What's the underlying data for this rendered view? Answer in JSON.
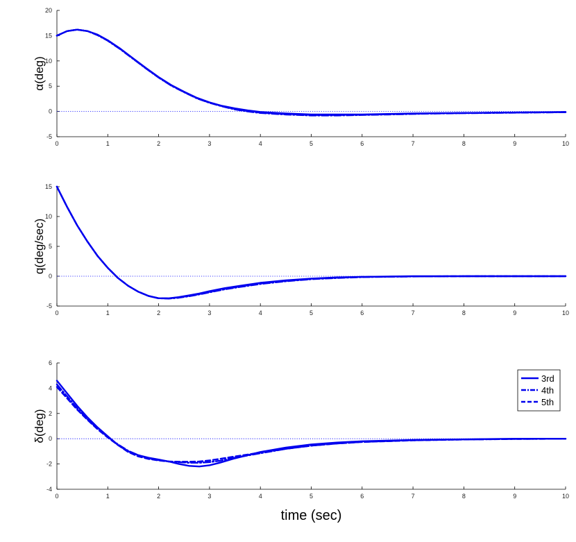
{
  "chart_data": [
    {
      "type": "line",
      "ylabel": "α(deg)",
      "xlim": [
        0,
        10
      ],
      "ylim": [
        -5,
        20
      ],
      "xticks": [
        "0",
        "1",
        "2",
        "3",
        "4",
        "5",
        "6",
        "7",
        "8",
        "9",
        "10"
      ],
      "yticks": [
        "-5",
        "0",
        "5",
        "10",
        "15",
        "20"
      ],
      "zero_line": true,
      "series": [
        {
          "name": "3rd",
          "style": "solid",
          "x": [
            0,
            0.2,
            0.4,
            0.6,
            0.8,
            1,
            1.25,
            1.5,
            1.75,
            2,
            2.25,
            2.5,
            2.75,
            3,
            3.25,
            3.5,
            3.75,
            4,
            4.5,
            5,
            5.5,
            6,
            6.5,
            7,
            7.5,
            8,
            8.5,
            9,
            9.5,
            10
          ],
          "y": [
            15,
            15.9,
            16.2,
            15.9,
            15.2,
            14.1,
            12.4,
            10.5,
            8.6,
            6.8,
            5.2,
            3.9,
            2.7,
            1.8,
            1.1,
            0.6,
            0.2,
            -0.1,
            -0.4,
            -0.6,
            -0.6,
            -0.6,
            -0.5,
            -0.4,
            -0.35,
            -0.3,
            -0.25,
            -0.2,
            -0.15,
            -0.1
          ]
        },
        {
          "name": "4th",
          "style": "dashdot",
          "x": [
            0,
            0.2,
            0.4,
            0.6,
            0.8,
            1,
            1.25,
            1.5,
            1.75,
            2,
            2.25,
            2.5,
            2.75,
            3,
            3.25,
            3.5,
            3.75,
            4,
            4.5,
            5,
            5.5,
            6,
            6.5,
            7,
            7.5,
            8,
            8.5,
            9,
            9.5,
            10
          ],
          "y": [
            15,
            15.9,
            16.2,
            15.9,
            15.1,
            14.0,
            12.3,
            10.4,
            8.5,
            6.7,
            5.1,
            3.8,
            2.6,
            1.7,
            1.0,
            0.4,
            0.0,
            -0.3,
            -0.6,
            -0.8,
            -0.8,
            -0.7,
            -0.6,
            -0.5,
            -0.4,
            -0.35,
            -0.3,
            -0.25,
            -0.2,
            -0.15
          ]
        },
        {
          "name": "5th",
          "style": "dashed",
          "x": [
            0,
            0.2,
            0.4,
            0.6,
            0.8,
            1,
            1.25,
            1.5,
            1.75,
            2,
            2.25,
            2.5,
            2.75,
            3,
            3.25,
            3.5,
            3.75,
            4,
            4.5,
            5,
            5.5,
            6,
            6.5,
            7,
            7.5,
            8,
            8.5,
            9,
            9.5,
            10
          ],
          "y": [
            15,
            15.9,
            16.2,
            15.9,
            15.15,
            14.05,
            12.35,
            10.45,
            8.55,
            6.75,
            5.15,
            3.85,
            2.65,
            1.75,
            1.05,
            0.5,
            0.1,
            -0.2,
            -0.5,
            -0.7,
            -0.7,
            -0.65,
            -0.55,
            -0.45,
            -0.38,
            -0.32,
            -0.27,
            -0.22,
            -0.17,
            -0.12
          ]
        }
      ]
    },
    {
      "type": "line",
      "ylabel": "q(deg/sec)",
      "xlim": [
        0,
        10
      ],
      "ylim": [
        -5,
        15
      ],
      "xticks": [
        "0",
        "1",
        "2",
        "3",
        "4",
        "5",
        "6",
        "7",
        "8",
        "9",
        "10"
      ],
      "yticks": [
        "-5",
        "0",
        "5",
        "10",
        "15"
      ],
      "zero_line": true,
      "series": [
        {
          "name": "3rd",
          "style": "solid",
          "x": [
            0,
            0.2,
            0.4,
            0.6,
            0.8,
            1,
            1.2,
            1.4,
            1.6,
            1.8,
            2,
            2.2,
            2.4,
            2.6,
            2.8,
            3,
            3.3,
            3.6,
            4,
            4.5,
            5,
            5.5,
            6,
            7,
            8,
            9,
            10
          ],
          "y": [
            15,
            11.6,
            8.5,
            5.8,
            3.4,
            1.4,
            -0.3,
            -1.6,
            -2.6,
            -3.3,
            -3.7,
            -3.7,
            -3.5,
            -3.2,
            -2.9,
            -2.5,
            -2.0,
            -1.6,
            -1.1,
            -0.7,
            -0.4,
            -0.2,
            -0.1,
            0,
            0,
            0,
            0
          ]
        },
        {
          "name": "4th",
          "style": "dashdot",
          "x": [
            0,
            0.2,
            0.4,
            0.6,
            0.8,
            1,
            1.2,
            1.4,
            1.6,
            1.8,
            2,
            2.2,
            2.4,
            2.6,
            2.8,
            3,
            3.3,
            3.6,
            4,
            4.5,
            5,
            5.5,
            6,
            7,
            8,
            9,
            10
          ],
          "y": [
            15,
            11.6,
            8.5,
            5.8,
            3.4,
            1.4,
            -0.3,
            -1.6,
            -2.6,
            -3.3,
            -3.7,
            -3.75,
            -3.6,
            -3.35,
            -3.05,
            -2.7,
            -2.2,
            -1.8,
            -1.3,
            -0.85,
            -0.5,
            -0.3,
            -0.15,
            -0.05,
            0,
            0,
            0
          ]
        },
        {
          "name": "5th",
          "style": "dashed",
          "x": [
            0,
            0.2,
            0.4,
            0.6,
            0.8,
            1,
            1.2,
            1.4,
            1.6,
            1.8,
            2,
            2.2,
            2.4,
            2.6,
            2.8,
            3,
            3.3,
            3.6,
            4,
            4.5,
            5,
            5.5,
            6,
            7,
            8,
            9,
            10
          ],
          "y": [
            15,
            11.6,
            8.5,
            5.8,
            3.4,
            1.4,
            -0.3,
            -1.6,
            -2.6,
            -3.3,
            -3.7,
            -3.72,
            -3.55,
            -3.28,
            -2.98,
            -2.6,
            -2.1,
            -1.7,
            -1.2,
            -0.78,
            -0.45,
            -0.25,
            -0.12,
            -0.03,
            0,
            0,
            0
          ]
        }
      ]
    },
    {
      "type": "line",
      "ylabel": "δ(deg)",
      "xlabel": "time (sec)",
      "xlim": [
        0,
        10
      ],
      "ylim": [
        -4,
        6
      ],
      "xticks": [
        "0",
        "1",
        "2",
        "3",
        "4",
        "5",
        "6",
        "7",
        "8",
        "9",
        "10"
      ],
      "yticks": [
        "-4",
        "-2",
        "0",
        "2",
        "4",
        "6"
      ],
      "zero_line": true,
      "legend": "top-right",
      "series": [
        {
          "name": "3rd",
          "style": "solid",
          "x": [
            0,
            0.2,
            0.4,
            0.6,
            0.8,
            1,
            1.2,
            1.4,
            1.6,
            1.8,
            2,
            2.2,
            2.4,
            2.6,
            2.8,
            3,
            3.2,
            3.5,
            4,
            4.5,
            5,
            5.5,
            6,
            7,
            8,
            9,
            10
          ],
          "y": [
            4.6,
            3.6,
            2.6,
            1.7,
            0.9,
            0.2,
            -0.5,
            -1.0,
            -1.3,
            -1.5,
            -1.65,
            -1.8,
            -2.0,
            -2.15,
            -2.2,
            -2.1,
            -1.9,
            -1.55,
            -1.05,
            -0.7,
            -0.45,
            -0.3,
            -0.2,
            -0.1,
            -0.05,
            0,
            0
          ]
        },
        {
          "name": "4th",
          "style": "dashdot",
          "x": [
            0,
            0.2,
            0.4,
            0.6,
            0.8,
            1,
            1.2,
            1.4,
            1.6,
            1.8,
            2,
            2.2,
            2.4,
            2.6,
            2.8,
            3,
            3.2,
            3.5,
            4,
            4.5,
            5,
            5.5,
            6,
            7,
            8,
            9,
            10
          ],
          "y": [
            4.3,
            3.35,
            2.4,
            1.55,
            0.8,
            0.15,
            -0.45,
            -0.95,
            -1.3,
            -1.55,
            -1.7,
            -1.8,
            -1.85,
            -1.9,
            -1.9,
            -1.85,
            -1.75,
            -1.5,
            -1.15,
            -0.8,
            -0.55,
            -0.38,
            -0.25,
            -0.12,
            -0.06,
            -0.02,
            0
          ]
        },
        {
          "name": "5th",
          "style": "dashed",
          "x": [
            0,
            0.2,
            0.4,
            0.6,
            0.8,
            1,
            1.2,
            1.4,
            1.6,
            1.8,
            2,
            2.2,
            2.4,
            2.6,
            2.8,
            3,
            3.2,
            3.5,
            4,
            4.5,
            5,
            5.5,
            6,
            7,
            8,
            9,
            10
          ],
          "y": [
            4.1,
            3.2,
            2.3,
            1.5,
            0.75,
            0.1,
            -0.5,
            -1.05,
            -1.4,
            -1.6,
            -1.72,
            -1.8,
            -1.82,
            -1.82,
            -1.8,
            -1.72,
            -1.6,
            -1.4,
            -1.1,
            -0.8,
            -0.55,
            -0.38,
            -0.26,
            -0.13,
            -0.06,
            -0.02,
            0
          ]
        }
      ]
    }
  ],
  "colors": {
    "series": "#0000ee",
    "zero_line": "#0000ff"
  }
}
